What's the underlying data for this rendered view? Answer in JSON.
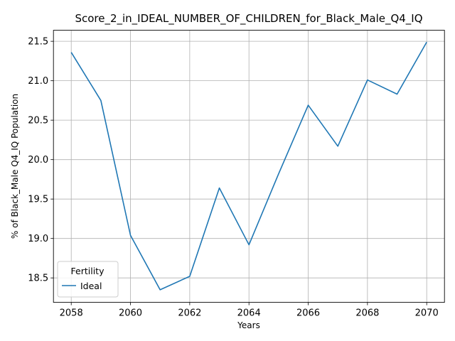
{
  "chart_data": {
    "type": "line",
    "title": "Score_2_in_IDEAL_NUMBER_OF_CHILDREN_for_Black_Male_Q4_IQ",
    "xlabel": "Years",
    "ylabel": "% of Black_Male Q4_IQ Population",
    "x": [
      2058,
      2059,
      2060,
      2061,
      2062,
      2063,
      2064,
      2065,
      2066,
      2067,
      2068,
      2069,
      2070
    ],
    "series": [
      {
        "name": "Ideal",
        "color": "#1f77b4",
        "values": [
          21.36,
          20.75,
          19.04,
          18.35,
          18.52,
          19.64,
          18.92,
          19.82,
          20.69,
          20.17,
          21.01,
          20.83,
          21.49
        ]
      }
    ],
    "xlim": [
      2057.4,
      2070.6
    ],
    "ylim": [
      18.19,
      21.64
    ],
    "xticks": [
      "2058",
      "2060",
      "2062",
      "2064",
      "2066",
      "2068",
      "2070"
    ],
    "yticks": [
      "18.5",
      "19.0",
      "19.5",
      "20.0",
      "20.5",
      "21.0",
      "21.5"
    ],
    "grid": true,
    "legend": {
      "title": "Fertility",
      "placement": "lower-left"
    }
  }
}
